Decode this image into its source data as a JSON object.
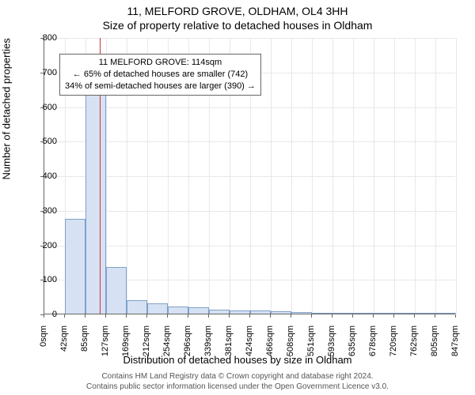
{
  "title_main": "11, MELFORD GROVE, OLDHAM, OL4 3HH",
  "title_sub": "Size of property relative to detached houses in Oldham",
  "ylabel": "Number of detached properties",
  "xlabel": "Distribution of detached houses by size in Oldham",
  "chart": {
    "type": "histogram",
    "ylim": [
      0,
      800
    ],
    "ytick_step": 100,
    "yticks": [
      0,
      100,
      200,
      300,
      400,
      500,
      600,
      700,
      800
    ],
    "xticks": [
      "0sqm",
      "42sqm",
      "85sqm",
      "127sqm",
      "169sqm",
      "212sqm",
      "254sqm",
      "296sqm",
      "339sqm",
      "381sqm",
      "424sqm",
      "466sqm",
      "508sqm",
      "551sqm",
      "593sqm",
      "635sqm",
      "678sqm",
      "720sqm",
      "762sqm",
      "805sqm",
      "847sqm"
    ],
    "bar_values": [
      0,
      275,
      650,
      135,
      38,
      30,
      20,
      18,
      12,
      10,
      10,
      8,
      5,
      3,
      3,
      2,
      2,
      1,
      1,
      1,
      0
    ],
    "bar_fill": "#d6e2f3",
    "bar_stroke": "#7f9fc9",
    "grid_color": "#e8e8e8",
    "background_color": "#ffffff",
    "axis_color": "#666666",
    "marker_value_sqm": 114,
    "marker_color": "#cc3333",
    "bar_width_ratio": 1.0
  },
  "annotation": {
    "line1": "11 MELFORD GROVE: 114sqm",
    "line2": "← 65% of detached houses are smaller (742)",
    "line3": "34% of semi-detached houses are larger (390) →"
  },
  "footer": {
    "line1": "Contains HM Land Registry data © Crown copyright and database right 2024.",
    "line2": "Contains public sector information licensed under the Open Government Licence v3.0."
  },
  "fonts": {
    "title_size": 14,
    "label_size": 13,
    "tick_size": 11,
    "annot_size": 11,
    "footer_size": 10
  }
}
